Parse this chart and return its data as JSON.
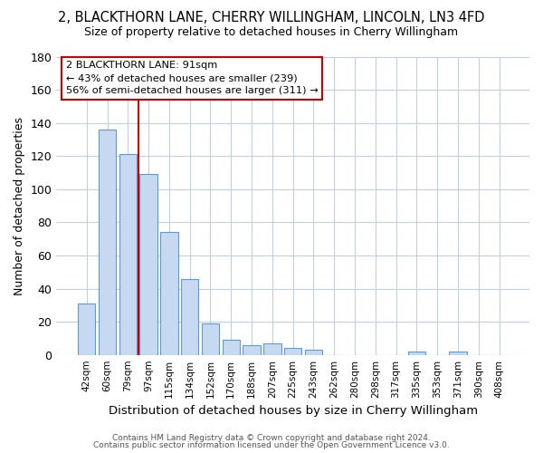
{
  "title": "2, BLACKTHORN LANE, CHERRY WILLINGHAM, LINCOLN, LN3 4FD",
  "subtitle": "Size of property relative to detached houses in Cherry Willingham",
  "xlabel": "Distribution of detached houses by size in Cherry Willingham",
  "ylabel": "Number of detached properties",
  "bar_labels": [
    "42sqm",
    "60sqm",
    "79sqm",
    "97sqm",
    "115sqm",
    "134sqm",
    "152sqm",
    "170sqm",
    "188sqm",
    "207sqm",
    "225sqm",
    "243sqm",
    "262sqm",
    "280sqm",
    "298sqm",
    "317sqm",
    "335sqm",
    "353sqm",
    "371sqm",
    "390sqm",
    "408sqm"
  ],
  "bar_values": [
    31,
    136,
    121,
    109,
    74,
    46,
    19,
    9,
    6,
    7,
    4,
    3,
    0,
    0,
    0,
    0,
    2,
    0,
    2,
    0,
    0
  ],
  "bar_color": "#c6d9f0",
  "bar_edge_color": "#5b9bd5",
  "vline_color": "#cc0000",
  "vline_pos": 2.5,
  "ylim": [
    0,
    180
  ],
  "yticks": [
    0,
    20,
    40,
    60,
    80,
    100,
    120,
    140,
    160,
    180
  ],
  "annotation_title": "2 BLACKTHORN LANE: 91sqm",
  "annotation_line1": "← 43% of detached houses are smaller (239)",
  "annotation_line2": "56% of semi-detached houses are larger (311) →",
  "footer1": "Contains HM Land Registry data © Crown copyright and database right 2024.",
  "footer2": "Contains public sector information licensed under the Open Government Licence v3.0.",
  "background_color": "#ffffff",
  "grid_color": "#c0d0e0"
}
